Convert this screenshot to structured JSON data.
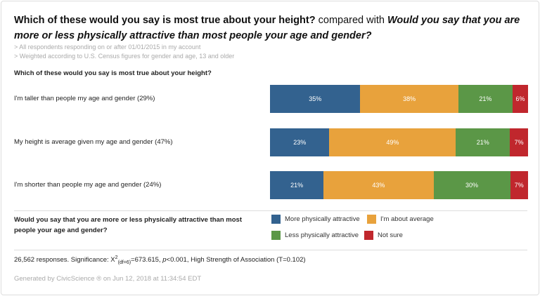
{
  "header": {
    "title_main": "Which of these would you say is most true about your height?",
    "title_join": "compared with",
    "title_compare": "Would you say that you are more or less physically attractive than most people your age and gender?",
    "filters": [
      "> All respondents responding on or after 01/01/2015 in my account",
      "> Weighted according to U.S. Census figures for gender and age, 13 and older"
    ]
  },
  "chart_data": {
    "type": "bar",
    "stacked": true,
    "orientation": "horizontal",
    "title": "Which of these would you say is most true about your height?",
    "categories": [
      "I'm taller than people my age and gender (29%)",
      "My height is average given my age and gender (47%)",
      "I'm shorter than people my age and gender (24%)"
    ],
    "series": [
      {
        "name": "More physically attractive",
        "color": "#33628F",
        "values": [
          35,
          23,
          21
        ]
      },
      {
        "name": "I'm about average",
        "color": "#E8A23C",
        "values": [
          38,
          49,
          43
        ]
      },
      {
        "name": "Less physically attractive",
        "color": "#5B9747",
        "values": [
          21,
          21,
          30
        ]
      },
      {
        "name": "Not sure",
        "color": "#C0272D",
        "values": [
          6,
          7,
          7
        ]
      }
    ],
    "legend_title": "Would you say that you are more or less physically attractive than most people your age and gender?",
    "legend_position": "bottom"
  },
  "footer": {
    "stats_prefix": "26,562 responses. Significance: X",
    "stats_sup": "2",
    "stats_sub": "(df=6)",
    "stats_value": "=673.615, ",
    "stats_p": "p",
    "stats_rest": "<0.001, High Strength of Association (T=0.102)",
    "generated": "Generated by CivicScience ® on Jun 12, 2018 at 11:34:54 EDT"
  }
}
